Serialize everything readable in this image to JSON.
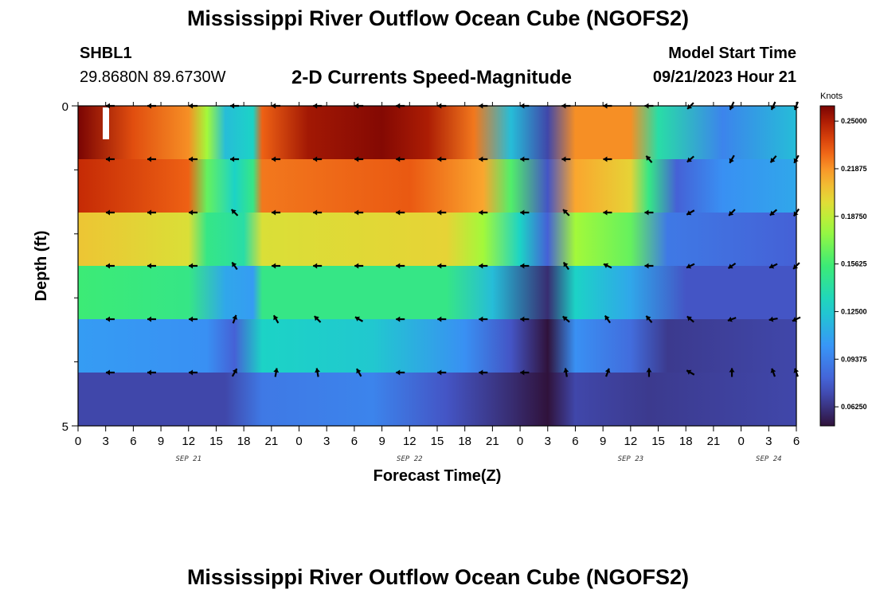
{
  "header": {
    "title": "Mississippi River Outflow Ocean Cube (NGOFS2)",
    "station_id": "SHBL1",
    "station_coords": "29.8680N  89.6730W",
    "subtitle": "2-D Currents Speed-Magnitude",
    "model_start_label": "Model Start Time",
    "model_start_value": "09/21/2023 Hour 21"
  },
  "footer": {
    "repeated_title": "Mississippi River Outflow Ocean Cube (NGOFS2)"
  },
  "chart_data": {
    "type": "heatmap",
    "title": "2-D Currents Speed-Magnitude",
    "xlabel": "Forecast Time(Z)",
    "ylabel": "Depth (ft)",
    "x_hours_since_start": [
      0,
      78
    ],
    "x_tick_labels": [
      "0",
      "3",
      "6",
      "9",
      "12",
      "15",
      "18",
      "21",
      "0",
      "3",
      "6",
      "9",
      "12",
      "15",
      "18",
      "21",
      "0",
      "3",
      "6",
      "9",
      "12",
      "15",
      "18",
      "21",
      "0",
      "3",
      "6"
    ],
    "date_labels": [
      {
        "text": "SEP 21",
        "hour": 12
      },
      {
        "text": "SEP 22",
        "hour": 36
      },
      {
        "text": "SEP 23",
        "hour": 60
      },
      {
        "text": "SEP 24",
        "hour": 75
      }
    ],
    "y_tick_labels": [
      "0",
      "5"
    ],
    "ylim": [
      0,
      5
    ],
    "layer_depths_ft": [
      0,
      1,
      2,
      3,
      4,
      5
    ],
    "colorbar": {
      "unit": "Knots",
      "vmin": 0.05,
      "vmax": 0.26,
      "tick_values": [
        "0.25000",
        "0.21875",
        "0.18750",
        "0.15625",
        "0.12500",
        "0.09375",
        "0.06250"
      ]
    },
    "speed_keyframes_by_layer": [
      [
        [
          0,
          0.262
        ],
        [
          6,
          0.235
        ],
        [
          12,
          0.22
        ],
        [
          14,
          0.18
        ],
        [
          16,
          0.12
        ],
        [
          19,
          0.13
        ],
        [
          20,
          0.23
        ],
        [
          25,
          0.252
        ],
        [
          33,
          0.258
        ],
        [
          38,
          0.25
        ],
        [
          43,
          0.225
        ],
        [
          47,
          0.12
        ],
        [
          51,
          0.07
        ],
        [
          54,
          0.22
        ],
        [
          60,
          0.22
        ],
        [
          63,
          0.14
        ],
        [
          70,
          0.095
        ],
        [
          78,
          0.12
        ]
      ],
      [
        [
          0,
          0.245
        ],
        [
          12,
          0.23
        ],
        [
          14,
          0.165
        ],
        [
          17,
          0.13
        ],
        [
          19,
          0.15
        ],
        [
          20,
          0.225
        ],
        [
          36,
          0.232
        ],
        [
          44,
          0.215
        ],
        [
          47,
          0.16
        ],
        [
          51,
          0.075
        ],
        [
          54,
          0.215
        ],
        [
          60,
          0.2
        ],
        [
          62,
          0.15
        ],
        [
          65,
          0.08
        ],
        [
          70,
          0.1
        ],
        [
          78,
          0.11
        ]
      ],
      [
        [
          0,
          0.205
        ],
        [
          12,
          0.195
        ],
        [
          14,
          0.15
        ],
        [
          18,
          0.14
        ],
        [
          20,
          0.195
        ],
        [
          40,
          0.2
        ],
        [
          44,
          0.18
        ],
        [
          48,
          0.13
        ],
        [
          51,
          0.08
        ],
        [
          54,
          0.18
        ],
        [
          60,
          0.165
        ],
        [
          64,
          0.09
        ],
        [
          78,
          0.08
        ]
      ],
      [
        [
          0,
          0.155
        ],
        [
          12,
          0.15
        ],
        [
          16,
          0.11
        ],
        [
          19,
          0.105
        ],
        [
          20,
          0.15
        ],
        [
          40,
          0.15
        ],
        [
          45,
          0.12
        ],
        [
          51,
          0.06
        ],
        [
          54,
          0.13
        ],
        [
          60,
          0.11
        ],
        [
          66,
          0.075
        ],
        [
          78,
          0.075
        ]
      ],
      [
        [
          0,
          0.105
        ],
        [
          14,
          0.1
        ],
        [
          17,
          0.08
        ],
        [
          20,
          0.13
        ],
        [
          32,
          0.125
        ],
        [
          42,
          0.1
        ],
        [
          47,
          0.075
        ],
        [
          51,
          0.045
        ],
        [
          54,
          0.1
        ],
        [
          60,
          0.085
        ],
        [
          64,
          0.065
        ],
        [
          78,
          0.07
        ]
      ],
      [
        [
          0,
          0.07
        ],
        [
          16,
          0.07
        ],
        [
          20,
          0.09
        ],
        [
          32,
          0.095
        ],
        [
          40,
          0.075
        ],
        [
          47,
          0.06
        ],
        [
          51,
          0.03
        ],
        [
          54,
          0.07
        ],
        [
          62,
          0.065
        ],
        [
          78,
          0.07
        ]
      ]
    ],
    "vector_hours": [
      3.5,
      8,
      12.5,
      17,
      21.5,
      26,
      30.5,
      35,
      39.5,
      44,
      48.5,
      53,
      57.5,
      62,
      66.5,
      71,
      75.5,
      78
    ],
    "vector_dirs_deg_by_layer": [
      [
        180,
        180,
        180,
        180,
        180,
        180,
        180,
        180,
        180,
        180,
        180,
        180,
        180,
        180,
        225,
        245,
        245,
        250
      ],
      [
        180,
        180,
        180,
        180,
        180,
        180,
        180,
        180,
        180,
        180,
        180,
        180,
        180,
        130,
        220,
        240,
        230,
        240
      ],
      [
        180,
        180,
        180,
        135,
        180,
        180,
        180,
        180,
        180,
        180,
        180,
        135,
        180,
        180,
        210,
        225,
        220,
        235
      ],
      [
        180,
        180,
        180,
        125,
        180,
        180,
        180,
        180,
        180,
        180,
        180,
        125,
        155,
        180,
        205,
        215,
        205,
        225
      ],
      [
        180,
        180,
        180,
        70,
        120,
        135,
        150,
        180,
        180,
        180,
        180,
        140,
        125,
        130,
        140,
        200,
        190,
        205
      ],
      [
        180,
        180,
        180,
        60,
        80,
        100,
        120,
        180,
        180,
        180,
        180,
        100,
        70,
        90,
        150,
        90,
        110,
        110
      ]
    ]
  }
}
